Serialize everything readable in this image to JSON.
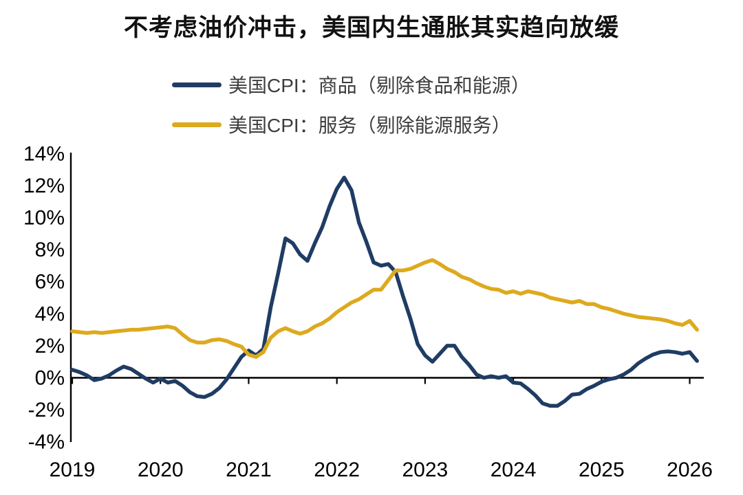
{
  "title": "不考虑油价冲击，美国内生通胀其实趋向放缓",
  "colors": {
    "goods_line": "#1f3c64",
    "services_line": "#ddaa1e",
    "axis": "#000000",
    "tick_label": "#000000",
    "legend_text": "#3d3d3d",
    "background": "#ffffff"
  },
  "chart_data": {
    "type": "line",
    "title": "不考虑油价冲击，美国内生通胀其实趋向放缓",
    "xlabel": "",
    "ylabel": "",
    "x_unit": "month",
    "x_start": "2019-01",
    "x_end": "2026-02",
    "n_points": 86,
    "x_tick_labels": [
      "2019",
      "2020",
      "2021",
      "2022",
      "2023",
      "2024",
      "2025",
      "2026"
    ],
    "y_ticks": [
      14,
      12,
      10,
      8,
      6,
      4,
      2,
      0,
      -2,
      -4
    ],
    "y_tick_labels": [
      "14%",
      "12%",
      "10%",
      "8%",
      "6%",
      "4%",
      "2%",
      "0%",
      "-2%",
      "-4%"
    ],
    "ylim": [
      -4,
      14
    ],
    "grid": false,
    "legend_position": "top-left",
    "series": [
      {
        "name": "美国CPI：商品（剔除食品和能源）",
        "color": "#1f3c64",
        "values": [
          0.5,
          0.35,
          0.15,
          -0.15,
          -0.05,
          0.15,
          0.45,
          0.7,
          0.55,
          0.25,
          -0.05,
          -0.3,
          -0.05,
          -0.3,
          -0.2,
          -0.5,
          -0.9,
          -1.15,
          -1.2,
          -1.0,
          -0.65,
          -0.1,
          0.6,
          1.3,
          1.7,
          1.4,
          1.8,
          4.4,
          6.5,
          8.7,
          8.4,
          7.7,
          7.3,
          8.4,
          9.4,
          10.7,
          11.8,
          12.5,
          11.7,
          9.7,
          8.5,
          7.2,
          7.0,
          7.1,
          6.6,
          5.1,
          3.7,
          2.1,
          1.4,
          1.0,
          1.5,
          2.0,
          2.0,
          1.3,
          0.8,
          0.2,
          0.0,
          0.1,
          0.0,
          0.1,
          -0.3,
          -0.35,
          -0.7,
          -1.1,
          -1.6,
          -1.75,
          -1.75,
          -1.45,
          -1.05,
          -1.0,
          -0.7,
          -0.5,
          -0.25,
          -0.1,
          0.0,
          0.2,
          0.5,
          0.9,
          1.2,
          1.45,
          1.6,
          1.65,
          1.6,
          1.5,
          1.6,
          1.05
        ]
      },
      {
        "name": "美国CPI：服务（剔除能源服务）",
        "color": "#ddaa1e",
        "values": [
          2.9,
          2.85,
          2.8,
          2.85,
          2.8,
          2.85,
          2.9,
          2.95,
          3.0,
          3.0,
          3.05,
          3.1,
          3.15,
          3.2,
          3.1,
          2.7,
          2.35,
          2.2,
          2.2,
          2.35,
          2.4,
          2.3,
          2.1,
          1.95,
          1.45,
          1.3,
          1.6,
          2.5,
          2.9,
          3.1,
          2.9,
          2.75,
          2.9,
          3.2,
          3.4,
          3.7,
          4.1,
          4.4,
          4.7,
          4.9,
          5.2,
          5.5,
          5.5,
          6.1,
          6.7,
          6.7,
          6.8,
          7.0,
          7.2,
          7.35,
          7.1,
          6.8,
          6.6,
          6.3,
          6.15,
          5.9,
          5.7,
          5.55,
          5.5,
          5.3,
          5.4,
          5.25,
          5.4,
          5.3,
          5.2,
          5.0,
          4.9,
          4.8,
          4.7,
          4.8,
          4.6,
          4.6,
          4.4,
          4.3,
          4.15,
          4.0,
          3.9,
          3.8,
          3.75,
          3.7,
          3.65,
          3.55,
          3.4,
          3.3,
          3.55,
          3.0
        ]
      }
    ]
  }
}
